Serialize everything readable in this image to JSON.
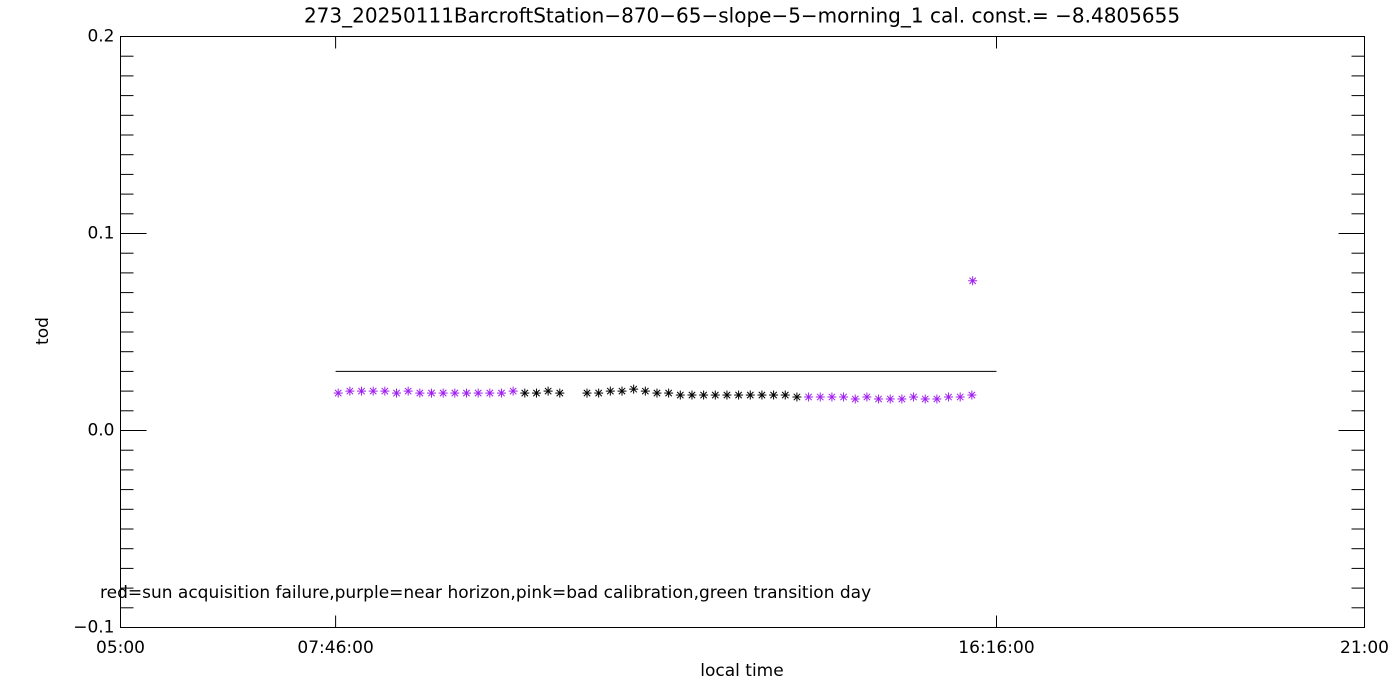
{
  "chart_data": {
    "type": "scatter",
    "title": "273_20250111BarcroftStation−870−65−slope−5−morning_1 cal. const.= −8.4805655",
    "x_label": "local time",
    "y_label": "tod",
    "annotation": "red=sun acquisition failure,purple=near horizon,pink=bad calibration,green transition day",
    "xlim": [
      5,
      21
    ],
    "xticks": [
      {
        "value": 5,
        "label": "05:00"
      },
      {
        "value": 7.7667,
        "label": "07:46:00"
      },
      {
        "value": 16.2667,
        "label": "16:16:00"
      },
      {
        "value": 21,
        "label": "21:00"
      }
    ],
    "ylim": [
      -0.1,
      0.2
    ],
    "yticks": [
      {
        "value": -0.1,
        "label": "−0.1"
      },
      {
        "value": 0,
        "label": "0.0"
      },
      {
        "value": 0.1,
        "label": "0.1"
      },
      {
        "value": 0.2,
        "label": "0.2"
      }
    ],
    "color": "#000000",
    "highlight_color": "#a020f0",
    "highlight_x_ranges": [
      [
        7.8,
        10.05
      ],
      [
        13.85,
        15.96
      ]
    ],
    "reference_line": {
      "x": [
        7.7667,
        16.2667
      ],
      "y": 0.03,
      "color": "#000000"
    },
    "x": [
      7.8,
      7.95,
      8.1,
      8.25,
      8.4,
      8.55,
      8.7,
      8.85,
      9.0,
      9.15,
      9.3,
      9.45,
      9.6,
      9.75,
      9.9,
      10.05,
      10.2,
      10.35,
      10.5,
      10.65,
      11.0,
      11.15,
      11.3,
      11.45,
      11.6,
      11.75,
      11.9,
      12.05,
      12.2,
      12.35,
      12.5,
      12.65,
      12.8,
      12.95,
      13.1,
      13.25,
      13.4,
      13.55,
      13.7,
      13.85,
      14.0,
      14.15,
      14.3,
      14.45,
      14.6,
      14.75,
      14.9,
      15.05,
      15.2,
      15.35,
      15.5,
      15.65,
      15.8,
      15.95,
      15.96
    ],
    "values": [
      0.019,
      0.02,
      0.02,
      0.02,
      0.02,
      0.019,
      0.02,
      0.019,
      0.019,
      0.019,
      0.019,
      0.019,
      0.019,
      0.019,
      0.019,
      0.02,
      0.019,
      0.019,
      0.02,
      0.019,
      0.019,
      0.019,
      0.02,
      0.02,
      0.021,
      0.02,
      0.019,
      0.019,
      0.018,
      0.018,
      0.018,
      0.018,
      0.018,
      0.018,
      0.018,
      0.018,
      0.018,
      0.018,
      0.017,
      0.017,
      0.017,
      0.017,
      0.017,
      0.016,
      0.017,
      0.016,
      0.016,
      0.016,
      0.017,
      0.016,
      0.016,
      0.017,
      0.017,
      0.018,
      0.076
    ]
  }
}
